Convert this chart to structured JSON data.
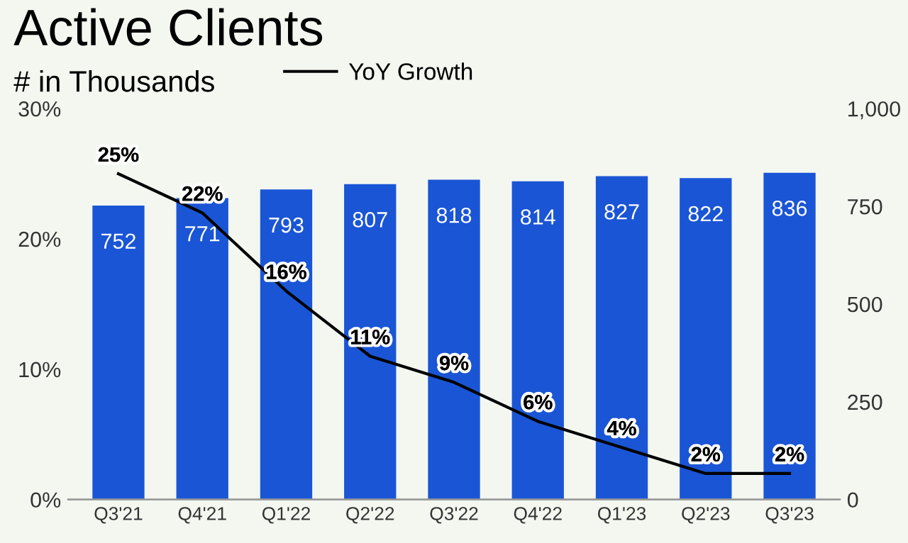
{
  "chart_data": {
    "type": "bar",
    "title": "Active Clients",
    "subtitle": "# in Thousands",
    "categories": [
      "Q3'21",
      "Q4'21",
      "Q1'22",
      "Q2'22",
      "Q3'22",
      "Q4'22",
      "Q1'23",
      "Q2'23",
      "Q3'23"
    ],
    "series": [
      {
        "axis": "y2",
        "color": "#1a55d6",
        "values": [
          752,
          771,
          793,
          807,
          818,
          814,
          827,
          822,
          836
        ],
        "value_labels": [
          "752",
          "771",
          "793",
          "807",
          "818",
          "814",
          "827",
          "822",
          "836"
        ]
      },
      {
        "type": "line",
        "name": "YoY Growth",
        "color": "#000000",
        "values": [
          25,
          22,
          16,
          11,
          9,
          6,
          4,
          2,
          2
        ],
        "value_labels": [
          "25%",
          "22%",
          "16%",
          "11%",
          "9%",
          "6%",
          "4%",
          "2%",
          "2%"
        ]
      }
    ],
    "ylim": [
      0,
      30
    ],
    "yticks": [
      {
        "value": 0,
        "label": "0%"
      },
      {
        "value": 10,
        "label": "10%"
      },
      {
        "value": 20,
        "label": "20%"
      },
      {
        "value": 30,
        "label": "30%"
      }
    ],
    "y2lim": [
      0,
      1000
    ],
    "y2ticks": [
      0,
      250,
      500,
      750,
      {
        "value": 1000,
        "label": "1,000"
      }
    ],
    "legend": "top",
    "grid": false,
    "marker": "none",
    "line_style": "solid"
  }
}
